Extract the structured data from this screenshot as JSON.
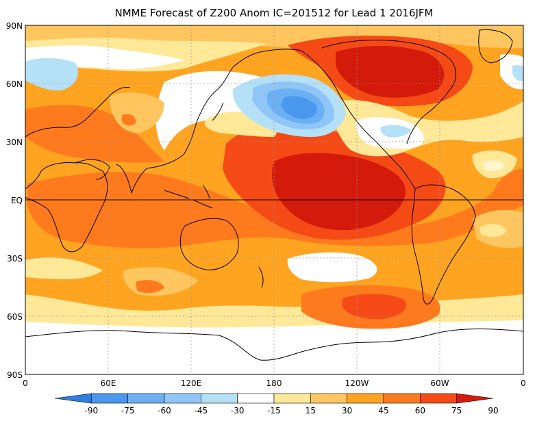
{
  "title": "NMME Forecast of Z200 Anom IC=201512 for Lead 1 2016JFM",
  "lat_labels": [
    "90N",
    "60N",
    "30N",
    "EQ",
    "30S",
    "60S",
    "90S"
  ],
  "lon_labels": [
    "0",
    "60E",
    "120E",
    "180",
    "120W",
    "60W",
    "0"
  ],
  "colorbar": {
    "labels": [
      "-90",
      "-75",
      "-60",
      "-45",
      "-30",
      "-15",
      "15",
      "30",
      "45",
      "60",
      "75",
      "90"
    ],
    "colors": [
      "#2f7fe0",
      "#4a98ee",
      "#6cb0f4",
      "#8fc6f7",
      "#b4e0f8",
      "#ffffff",
      "#ffe898",
      "#ffc55e",
      "#ffa421",
      "#ff7a1c",
      "#f54a16",
      "#d41a0a"
    ]
  },
  "colors": {
    "ocean_base": "#ffa421",
    "light": "#ffe898",
    "tan": "#ffc55e",
    "orange_red": "#ff7a1c",
    "red": "#f54a16",
    "dark_red": "#d41a0a",
    "blue_light": "#b4e0f8",
    "blue_mid": "#8fc6f7",
    "blue_dark": "#4a98ee"
  }
}
